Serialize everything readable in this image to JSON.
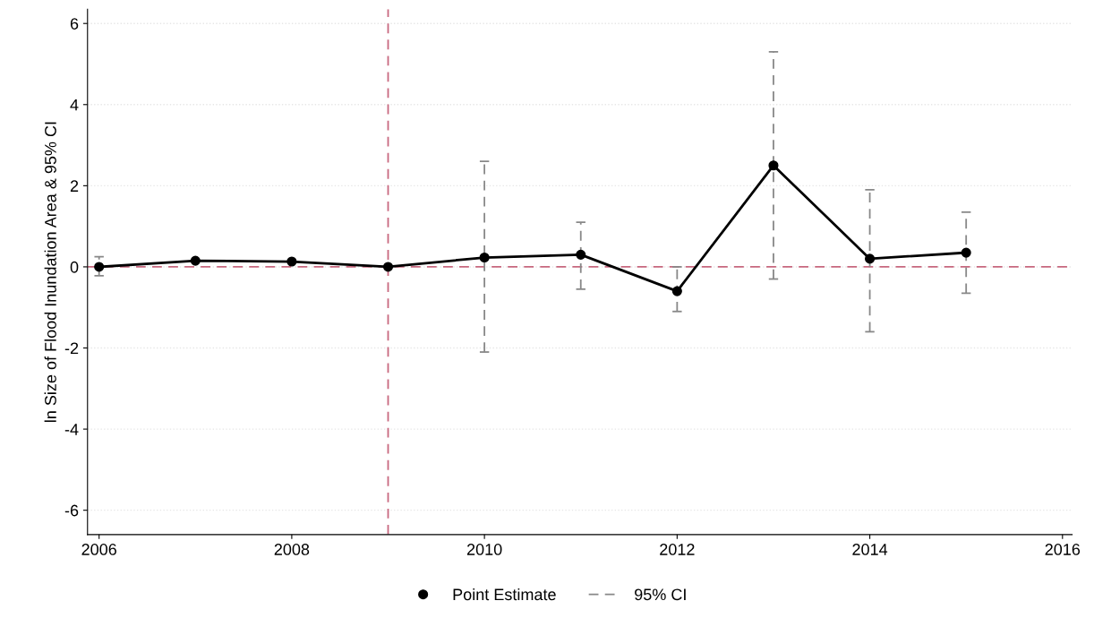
{
  "chart_data": {
    "type": "line",
    "ylabel": "ln Size of Flood Inundation Area & 95% CI",
    "x": [
      2006,
      2007,
      2008,
      2009,
      2010,
      2011,
      2012,
      2013,
      2014,
      2015
    ],
    "series": [
      {
        "name": "Point Estimate",
        "color": "#000000",
        "marker": "circle",
        "values": [
          0,
          0.15,
          0.13,
          0,
          0.23,
          0.3,
          -0.6,
          2.5,
          0.2,
          0.35
        ],
        "errors": [
          [
            -0.22,
            0.25
          ],
          null,
          null,
          null,
          [
            -2.1,
            2.6
          ],
          [
            -0.55,
            1.1
          ],
          [
            -1.1,
            0
          ],
          [
            -0.3,
            5.3
          ],
          [
            -1.6,
            1.9
          ],
          [
            -0.65,
            1.35
          ]
        ]
      }
    ],
    "annotations": [
      "95% CI"
    ],
    "xlim": [
      2005.88,
      2016.1
    ],
    "ylim": [
      -6.6,
      6.35
    ],
    "xticks": [
      2006,
      2008,
      2010,
      2012,
      2014,
      2016
    ],
    "yticks": [
      {
        "value": -6,
        "label": "-6"
      },
      {
        "value": -4,
        "label": "-4"
      },
      {
        "value": -2,
        "label": "-2"
      },
      0,
      2,
      4,
      6
    ],
    "ref_lines": [
      {
        "axis": "y",
        "value": 0,
        "color": "#c8687f",
        "line_style": "dashed"
      },
      {
        "axis": "x",
        "value": 2009,
        "color": "#c8687f",
        "line_style": "dashed"
      }
    ],
    "grid": "y",
    "legend": "bottom"
  }
}
